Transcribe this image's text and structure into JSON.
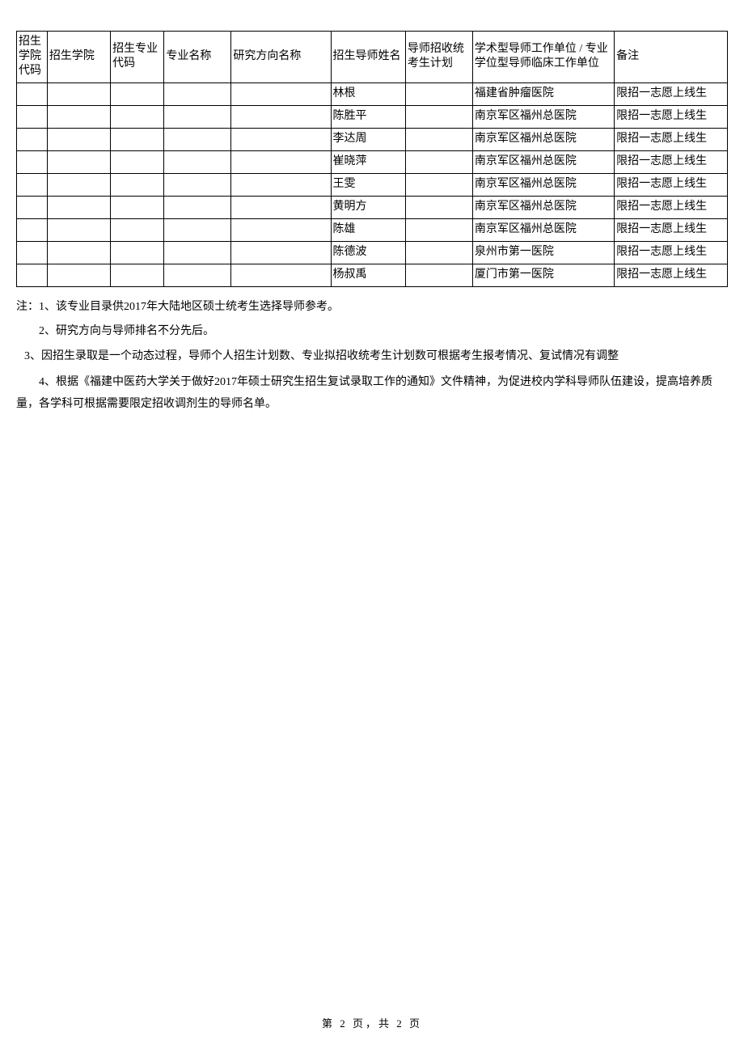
{
  "table": {
    "headers": [
      "招生学院代码",
      "招生学院",
      "招生专业代码",
      "专业名称",
      "研究方向名称",
      "招生导师姓名",
      "导师招收统考生计划",
      "学术型导师工作单位 / 专业学位型导师临床工作单位",
      "备注"
    ],
    "rows": [
      {
        "c0": "",
        "c1": "",
        "c2": "",
        "c3": "",
        "c4": "",
        "c5": "林根",
        "c6": "",
        "c7": "福建省肿瘤医院",
        "c8": "限招一志愿上线生"
      },
      {
        "c0": "",
        "c1": "",
        "c2": "",
        "c3": "",
        "c4": "",
        "c5": "陈胜平",
        "c6": "",
        "c7": "南京军区福州总医院",
        "c8": "限招一志愿上线生"
      },
      {
        "c0": "",
        "c1": "",
        "c2": "",
        "c3": "",
        "c4": "",
        "c5": "李达周",
        "c6": "",
        "c7": "南京军区福州总医院",
        "c8": "限招一志愿上线生"
      },
      {
        "c0": "",
        "c1": "",
        "c2": "",
        "c3": "",
        "c4": "",
        "c5": "崔晓萍",
        "c6": "",
        "c7": "南京军区福州总医院",
        "c8": "限招一志愿上线生"
      },
      {
        "c0": "",
        "c1": "",
        "c2": "",
        "c3": "",
        "c4": "",
        "c5": "王雯",
        "c6": "",
        "c7": "南京军区福州总医院",
        "c8": "限招一志愿上线生"
      },
      {
        "c0": "",
        "c1": "",
        "c2": "",
        "c3": "",
        "c4": "",
        "c5": "黄明方",
        "c6": "",
        "c7": "南京军区福州总医院",
        "c8": "限招一志愿上线生"
      },
      {
        "c0": "",
        "c1": "",
        "c2": "",
        "c3": "",
        "c4": "",
        "c5": "陈雄",
        "c6": "",
        "c7": "南京军区福州总医院",
        "c8": "限招一志愿上线生"
      },
      {
        "c0": "",
        "c1": "",
        "c2": "",
        "c3": "",
        "c4": "",
        "c5": "陈德波",
        "c6": "",
        "c7": "泉州市第一医院",
        "c8": "限招一志愿上线生"
      },
      {
        "c0": "",
        "c1": "",
        "c2": "",
        "c3": "",
        "c4": "",
        "c5": "杨叔禹",
        "c6": "",
        "c7": "厦门市第一医院",
        "c8": "限招一志愿上线生"
      }
    ]
  },
  "notes": {
    "n1": "注：1、该专业目录供2017年大陆地区硕士统考生选择导师参考。",
    "n2": "2、研究方向与导师排名不分先后。",
    "n3": "3、因招生录取是一个动态过程，导师个人招生计划数、专业拟招收统考生计划数可根据考生报考情况、复试情况有调整",
    "n4": "4、根据《福建中医药大学关于做好2017年硕士研究生招生复试录取工作的通知》文件精神，为促进校内学科导师队伍建设，提高培养质量，各学科可根据需要限定招收调剂生的导师名单。"
  },
  "footer": "第 2 页，共 2 页"
}
